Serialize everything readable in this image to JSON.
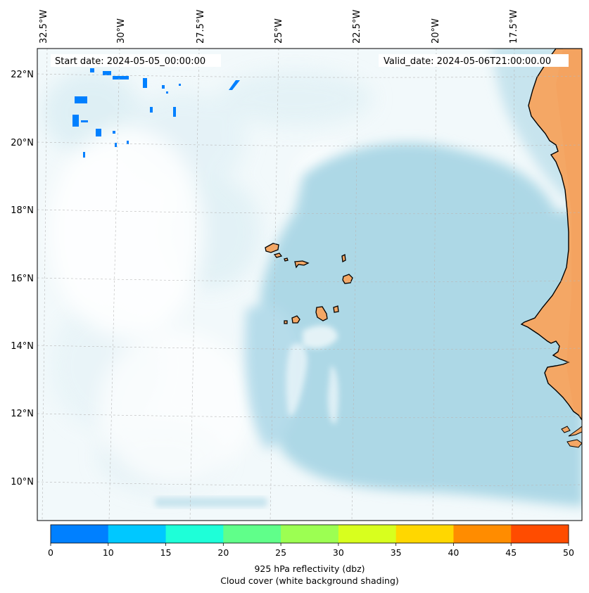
{
  "header": {
    "start_date": "Start date: 2024-05-05_00:00:00",
    "valid_date": "Valid_date: 2024-05-06T21:00:00.00"
  },
  "map": {
    "lon_labels": [
      "32.5°W",
      "30°W",
      "27.5°W",
      "25°W",
      "22.5°W",
      "20°W",
      "17.5°W"
    ],
    "lat_labels": [
      "22°N",
      "20°N",
      "18°N",
      "16°N",
      "14°N",
      "12°N",
      "10°N"
    ],
    "land_color": "#f4a765",
    "cloud_color": "#add8e6",
    "ocean_color": "#ffffff"
  },
  "colorbar": {
    "ticks": [
      "0",
      "10",
      "15",
      "20",
      "25",
      "30",
      "35",
      "40",
      "45",
      "50"
    ],
    "colors": [
      "#0080ff",
      "#00c8ff",
      "#1effd8",
      "#60ff8a",
      "#9cff52",
      "#d8ff1e",
      "#ffd700",
      "#ff8c00",
      "#ff4c00"
    ],
    "label_line1": "925 hPa reflectivity (dbz)",
    "label_line2": "Cloud cover (white background shading)"
  }
}
